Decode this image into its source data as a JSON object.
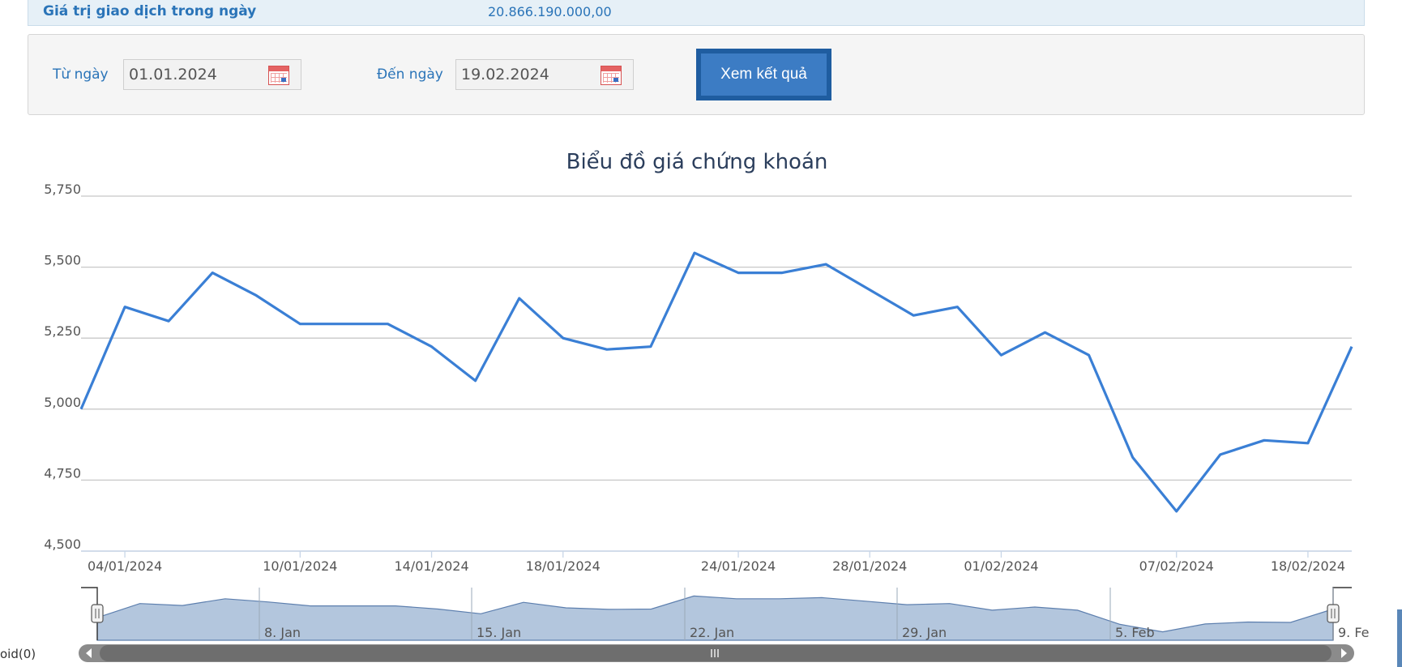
{
  "summary": {
    "label": "Giá trị giao dịch trong ngày",
    "value": "20.866.190.000,00"
  },
  "filter": {
    "from_label": "Từ ngày",
    "from_value": "01.01.2024",
    "to_label": "Đến ngày",
    "to_value": "19.02.2024",
    "submit_label": "Xem kết quả"
  },
  "chart_data": {
    "type": "line",
    "title": "Biểu đồ giá chứng khoán",
    "ylim": [
      4500,
      5750
    ],
    "y_ticks": [
      "5,750",
      "5,500",
      "5,250",
      "5,000",
      "4,750",
      "4,500"
    ],
    "x_tick_labels": [
      "04/01/2024",
      "10/01/2024",
      "14/01/2024",
      "18/01/2024",
      "24/01/2024",
      "28/01/2024",
      "01/02/2024",
      "07/02/2024",
      "18/02/2024"
    ],
    "series": [
      {
        "color": "#3a7fd5",
        "values": [
          5000,
          5360,
          5310,
          5480,
          5400,
          5300,
          5300,
          5300,
          5220,
          5100,
          5390,
          5250,
          5210,
          5220,
          5550,
          5480,
          5480,
          5510,
          5420,
          5330,
          5360,
          5190,
          5270,
          5190,
          4830,
          4640,
          4840,
          4890,
          4880,
          5220
        ]
      }
    ],
    "grid": true,
    "navigator": {
      "labels": [
        "8. Jan",
        "15. Jan",
        "22. Jan",
        "29. Jan",
        "5. Feb",
        "9. Fe"
      ]
    }
  },
  "status_text": "oid(0)"
}
